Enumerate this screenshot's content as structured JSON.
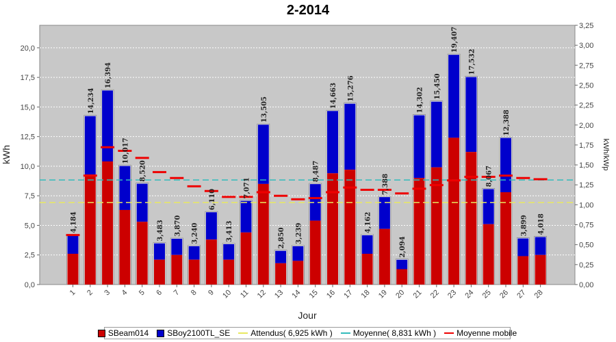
{
  "chart_data": {
    "type": "bar",
    "title": "2-2014",
    "xlabel": "Jour",
    "ylabel": "kWh",
    "y2label": "kWh/kWp",
    "ylim": [
      0,
      21.9
    ],
    "y2lim": [
      0,
      3.25
    ],
    "yticks": [
      "0,0",
      "2,5",
      "5,0",
      "7,5",
      "10,0",
      "12,5",
      "15,0",
      "17,5",
      "20,0"
    ],
    "y2ticks": [
      "0,00",
      "0,25",
      "0,50",
      "0,75",
      "1,00",
      "1,25",
      "1,50",
      "1,75",
      "2,00",
      "2,25",
      "2,50",
      "2,75",
      "3,00",
      "3,25"
    ],
    "categories": [
      "1",
      "2",
      "3",
      "4",
      "5",
      "6",
      "7",
      "8",
      "9",
      "10",
      "11",
      "12",
      "13",
      "14",
      "15",
      "16",
      "17",
      "18",
      "19",
      "20",
      "21",
      "22",
      "23",
      "24",
      "25",
      "26",
      "27",
      "28"
    ],
    "totals_labels": [
      "4,184",
      "14,234",
      "16,394",
      "10,017",
      "8,520",
      "3,483",
      "3,870",
      "3,240",
      "6,110",
      "3,413",
      "7,071",
      "13,505",
      "2,850",
      "3,239",
      "8,487",
      "14,663",
      "15,276",
      "4,162",
      "7,388",
      "2,094",
      "14,302",
      "15,450",
      "19,407",
      "17,532",
      "8,067",
      "12,388",
      "3,899",
      "4,018"
    ],
    "series": [
      {
        "name": "SBeam014",
        "color": "#cc0000",
        "values": [
          2.6,
          9.3,
          10.4,
          6.3,
          5.3,
          2.1,
          2.5,
          2.1,
          3.8,
          2.1,
          4.4,
          8.5,
          1.8,
          2.0,
          5.4,
          9.4,
          9.7,
          2.6,
          4.7,
          1.3,
          9.0,
          9.9,
          12.4,
          11.2,
          5.1,
          7.8,
          2.4,
          2.5
        ]
      },
      {
        "name": "SBoy2100TL_SE",
        "color": "#0000cc",
        "values": [
          1.584,
          4.934,
          5.994,
          3.717,
          3.22,
          1.383,
          1.37,
          1.14,
          2.31,
          1.313,
          2.671,
          5.005,
          1.05,
          1.239,
          3.087,
          5.263,
          5.576,
          1.562,
          2.688,
          0.794,
          5.302,
          5.55,
          7.007,
          6.332,
          2.967,
          4.588,
          1.499,
          1.518
        ]
      }
    ],
    "attendus": {
      "label": "Attendus( 6,925 kWh )",
      "value": 6.925,
      "color": "#e8e860"
    },
    "moyenne": {
      "label": "Moyenne( 8,831 kWh )",
      "value": 8.831,
      "color": "#33bbbb"
    },
    "moyenne_mobile": {
      "label": "Moyenne mobile",
      "color": "#ee0000",
      "values": [
        4.184,
        9.2,
        11.6,
        11.3,
        10.7,
        9.5,
        9.0,
        8.3,
        7.9,
        7.4,
        7.4,
        7.8,
        7.5,
        7.2,
        7.3,
        7.8,
        8.2,
        8.0,
        8.0,
        7.7,
        8.1,
        8.4,
        8.8,
        9.1,
        9.1,
        9.2,
        9.0,
        8.9
      ]
    },
    "grid": true,
    "legend_position": "bottom"
  }
}
